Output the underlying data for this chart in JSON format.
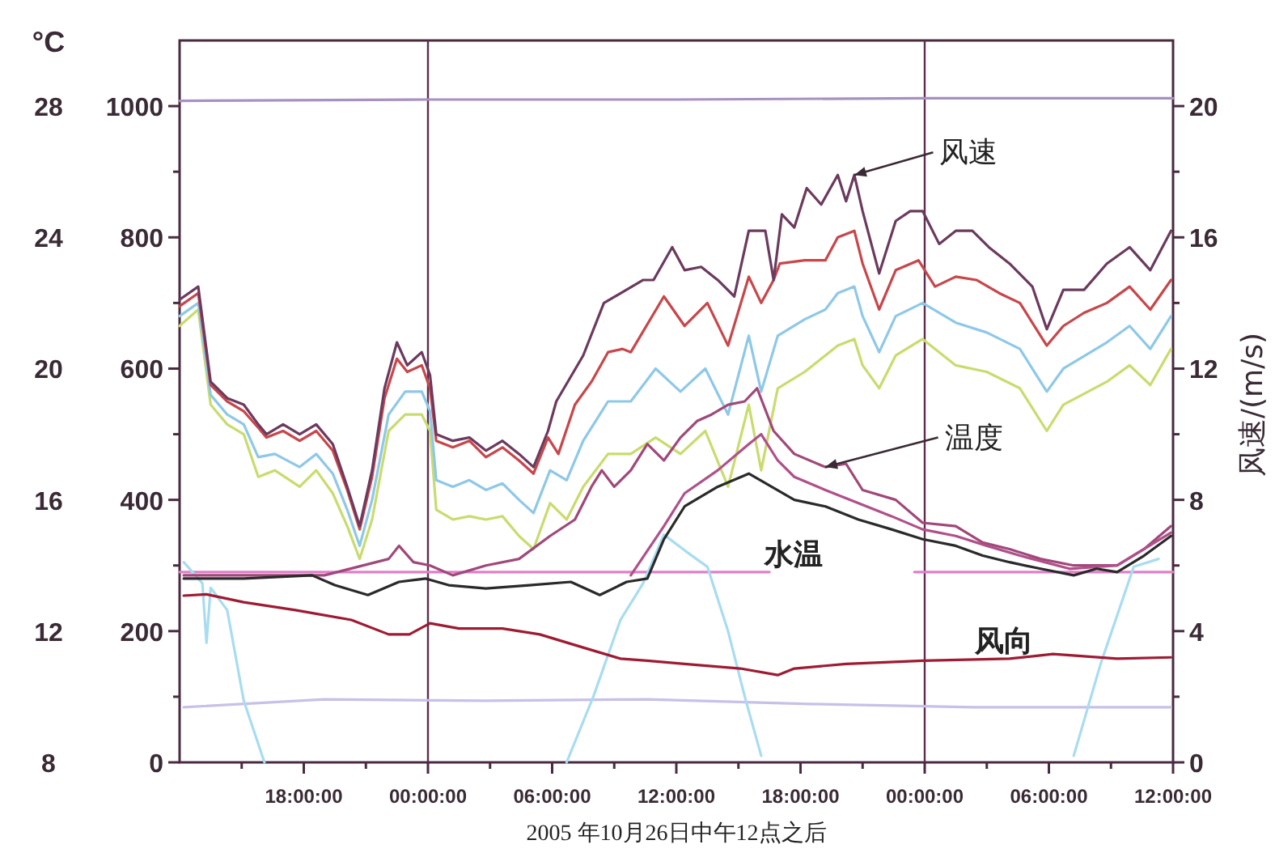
{
  "chart_data": {
    "type": "line",
    "xlabel": "2005 年10月26日中午12点之后",
    "y2label": "风速/(m/s)",
    "y3label": "°C",
    "xlim": [
      "2005-10-26T12:00",
      "2005-10-28T12:00"
    ],
    "xticks": [
      {
        "value": "2005-10-26T15:00",
        "label": null
      },
      {
        "value": "2005-10-26T18:00",
        "label": "18:00:00"
      },
      {
        "value": "2005-10-26T21:00",
        "label": null
      },
      {
        "value": "2005-10-27T00:00",
        "label": "00:00:00"
      },
      {
        "value": "2005-10-27T03:00",
        "label": null
      },
      {
        "value": "2005-10-27T06:00",
        "label": "06:00:00"
      },
      {
        "value": "2005-10-27T09:00",
        "label": null
      },
      {
        "value": "2005-10-27T12:00",
        "label": "12:00:00"
      },
      {
        "value": "2005-10-27T15:00",
        "label": null
      },
      {
        "value": "2005-10-27T18:00",
        "label": "18:00:00"
      },
      {
        "value": "2005-10-27T21:00",
        "label": null
      },
      {
        "value": "2005-10-28T00:00",
        "label": "00:00:00"
      },
      {
        "value": "2005-10-28T03:00",
        "label": null
      },
      {
        "value": "2005-10-28T06:00",
        "label": "06:00:00"
      },
      {
        "value": "2005-10-28T09:00",
        "label": null
      },
      {
        "value": "2005-10-28T12:00",
        "label": "12:00:00"
      }
    ],
    "ylim": [
      0,
      1100
    ],
    "yticks": [
      0,
      {
        "value": 100,
        "label": null
      },
      200,
      {
        "value": 300,
        "label": null
      },
      400,
      {
        "value": 500,
        "label": null
      },
      600,
      {
        "value": 700,
        "label": null
      },
      800,
      {
        "value": 900,
        "label": null
      },
      1000
    ],
    "y2lim": [
      0,
      22
    ],
    "y2ticks": [
      0,
      {
        "value": 2,
        "label": null
      },
      4,
      {
        "value": 6,
        "label": null
      },
      8,
      {
        "value": 10,
        "label": null
      },
      12,
      {
        "value": 14,
        "label": null
      },
      16,
      {
        "value": 18,
        "label": null
      },
      20
    ],
    "y3lim": [
      8,
      30
    ],
    "y3ticks": [
      8,
      12,
      16,
      20,
      24,
      28
    ],
    "ref_lines": [
      {
        "axis": "x",
        "value": "2005-10-27T00:00",
        "color": "#5a3050"
      },
      {
        "axis": "x",
        "value": "2005-10-28T00:00",
        "color": "#5a3050"
      }
    ],
    "series": [
      {
        "color": "#a890c0",
        "x": [
          "2005-10-26T12:00",
          "2005-10-27T00:00",
          "2005-10-27T12:00",
          "2005-10-28T00:00",
          "2005-10-28T12:00"
        ],
        "values": [
          1008,
          1010,
          1010,
          1012,
          1012
        ]
      },
      {
        "color": "#c8c0e8",
        "x": [
          "2005-10-26T12:12",
          "2005-10-26T19:00",
          "2005-10-27T02:48",
          "2005-10-27T10:36",
          "2005-10-27T18:24",
          "2005-10-28T02:18",
          "2005-10-28T11:54"
        ],
        "values": [
          84,
          96,
          94,
          96,
          89,
          84,
          84
        ]
      },
      {
        "color": "#e080c8",
        "x": [
          "2005-10-26T12:00",
          "2005-10-27T00:00",
          "2005-10-27T12:00",
          "2005-10-27T16:30"
        ],
        "values": [
          290,
          290,
          290,
          290
        ]
      },
      {
        "color": "#e080c8",
        "x": [
          "2005-10-27T23:30",
          "2005-10-28T12:00"
        ],
        "values": [
          290,
          290
        ]
      },
      {
        "color": "#a8dcf0",
        "x": [
          "2005-10-26T12:12",
          "2005-10-26T13:06",
          "2005-10-26T13:18",
          "2005-10-26T13:30",
          "2005-10-26T14:18",
          "2005-10-26T15:06",
          "2005-10-26T16:06"
        ],
        "values": [
          305,
          273,
          182,
          266,
          232,
          94,
          0
        ]
      },
      {
        "color": "#a8dcf0",
        "x": [
          "2005-10-27T06:42",
          "2005-10-27T08:00",
          "2005-10-27T09:18",
          "2005-10-27T10:24",
          "2005-10-27T11:24",
          "2005-10-27T12:24",
          "2005-10-27T13:30",
          "2005-10-27T14:30",
          "2005-10-27T15:18",
          "2005-10-27T16:06"
        ],
        "values": [
          0,
          101,
          217,
          273,
          347,
          323,
          298,
          200,
          101,
          10
        ]
      },
      {
        "color": "#a8dcf0",
        "x": [
          "2005-10-28T07:12",
          "2005-10-28T08:30",
          "2005-10-28T10:06",
          "2005-10-28T11:18"
        ],
        "values": [
          10,
          150,
          298,
          310
        ]
      },
      {
        "color": "#c8dc6e",
        "axis": "y3",
        "x": [
          "2005-10-26T12:00",
          "2005-10-26T12:54",
          "2005-10-26T13:30",
          "2005-10-26T14:18",
          "2005-10-26T15:06",
          "2005-10-26T15:48",
          "2005-10-26T16:36",
          "2005-10-26T17:48",
          "2005-10-26T18:36",
          "2005-10-26T19:24",
          "2005-10-26T20:06",
          "2005-10-26T20:42",
          "2005-10-26T21:18",
          "2005-10-26T22:06",
          "2005-10-26T22:54",
          "2005-10-26T23:42",
          "2005-10-27T00:06",
          "2005-10-27T00:24",
          "2005-10-27T01:12",
          "2005-10-27T02:00",
          "2005-10-27T02:48",
          "2005-10-27T03:36",
          "2005-10-27T04:24",
          "2005-10-27T05:06",
          "2005-10-27T05:54",
          "2005-10-27T06:42",
          "2005-10-27T07:30",
          "2005-10-27T08:42",
          "2005-10-27T09:48",
          "2005-10-27T11:00",
          "2005-10-27T12:12",
          "2005-10-27T13:24",
          "2005-10-27T14:30",
          "2005-10-27T15:30",
          "2005-10-27T16:06",
          "2005-10-27T16:54",
          "2005-10-27T18:12",
          "2005-10-27T19:12",
          "2005-10-27T19:48",
          "2005-10-27T20:36",
          "2005-10-27T21:00",
          "2005-10-27T21:48",
          "2005-10-27T22:36",
          "2005-10-27T23:54",
          "2005-10-28T01:30",
          "2005-10-28T03:00",
          "2005-10-28T04:36",
          "2005-10-28T05:54",
          "2005-10-28T06:42",
          "2005-10-28T08:48",
          "2005-10-28T09:54",
          "2005-10-28T10:54",
          "2005-10-28T11:54"
        ],
        "values": [
          21.3,
          21.8,
          18.9,
          18.3,
          18.0,
          16.7,
          16.9,
          16.4,
          16.9,
          16.2,
          15.2,
          14.2,
          15.4,
          18.1,
          18.6,
          18.6,
          18.1,
          15.7,
          15.4,
          15.5,
          15.4,
          15.5,
          14.9,
          14.5,
          15.9,
          15.4,
          16.4,
          17.4,
          17.4,
          17.9,
          17.4,
          18.1,
          16.4,
          18.9,
          16.9,
          19.4,
          19.9,
          20.4,
          20.7,
          20.9,
          20.1,
          19.4,
          20.4,
          20.9,
          20.1,
          19.9,
          19.4,
          18.1,
          18.9,
          19.6,
          20.1,
          19.5,
          20.6
        ]
      },
      {
        "color": "#8ec8e8",
        "axis": "y3",
        "x": [
          "2005-10-26T12:00",
          "2005-10-26T12:54",
          "2005-10-26T13:30",
          "2005-10-26T14:18",
          "2005-10-26T15:06",
          "2005-10-26T15:48",
          "2005-10-26T16:36",
          "2005-10-26T17:48",
          "2005-10-26T18:36",
          "2005-10-26T19:24",
          "2005-10-26T20:06",
          "2005-10-26T20:42",
          "2005-10-26T21:18",
          "2005-10-26T22:06",
          "2005-10-26T22:54",
          "2005-10-26T23:42",
          "2005-10-27T00:06",
          "2005-10-27T00:24",
          "2005-10-27T01:12",
          "2005-10-27T02:00",
          "2005-10-27T02:48",
          "2005-10-27T03:36",
          "2005-10-27T04:24",
          "2005-10-27T05:06",
          "2005-10-27T05:54",
          "2005-10-27T06:42",
          "2005-10-27T07:30",
          "2005-10-27T08:42",
          "2005-10-27T09:48",
          "2005-10-27T11:00",
          "2005-10-27T12:12",
          "2005-10-27T13:24",
          "2005-10-27T14:30",
          "2005-10-27T15:30",
          "2005-10-27T16:06",
          "2005-10-27T16:54",
          "2005-10-27T18:12",
          "2005-10-27T19:12",
          "2005-10-27T19:48",
          "2005-10-27T20:36",
          "2005-10-27T21:00",
          "2005-10-27T21:48",
          "2005-10-27T22:36",
          "2005-10-27T23:54",
          "2005-10-28T01:30",
          "2005-10-28T03:00",
          "2005-10-28T04:36",
          "2005-10-28T05:54",
          "2005-10-28T06:42",
          "2005-10-28T08:48",
          "2005-10-28T09:54",
          "2005-10-28T10:54",
          "2005-10-28T11:54"
        ],
        "values": [
          21.6,
          22.0,
          19.2,
          18.6,
          18.3,
          17.3,
          17.4,
          17.0,
          17.4,
          16.8,
          15.7,
          14.6,
          16.0,
          18.6,
          19.3,
          19.3,
          18.7,
          16.6,
          16.4,
          16.6,
          16.3,
          16.5,
          16.0,
          15.6,
          16.9,
          16.6,
          17.8,
          19.0,
          19.0,
          20.0,
          19.3,
          20.0,
          18.6,
          21.0,
          19.3,
          21.0,
          21.5,
          21.8,
          22.3,
          22.5,
          21.6,
          20.5,
          21.6,
          22.0,
          21.4,
          21.1,
          20.6,
          19.3,
          20.0,
          20.8,
          21.3,
          20.6,
          21.6
        ]
      },
      {
        "color": "#c8464a",
        "axis": "y3",
        "x": [
          "2005-10-26T12:00",
          "2005-10-26T12:54",
          "2005-10-26T13:30",
          "2005-10-26T14:18",
          "2005-10-26T15:06",
          "2005-10-26T15:48",
          "2005-10-26T16:12",
          "2005-10-26T17:00",
          "2005-10-26T17:48",
          "2005-10-26T18:36",
          "2005-10-26T19:24",
          "2005-10-26T20:06",
          "2005-10-26T20:42",
          "2005-10-26T21:18",
          "2005-10-26T21:54",
          "2005-10-26T22:30",
          "2005-10-26T23:00",
          "2005-10-26T23:42",
          "2005-10-27T00:06",
          "2005-10-27T00:24",
          "2005-10-27T01:12",
          "2005-10-27T02:00",
          "2005-10-27T02:48",
          "2005-10-27T03:36",
          "2005-10-27T04:24",
          "2005-10-27T05:06",
          "2005-10-27T05:48",
          "2005-10-27T06:18",
          "2005-10-27T07:06",
          "2005-10-27T07:54",
          "2005-10-27T08:42",
          "2005-10-27T09:24",
          "2005-10-27T09:48",
          "2005-10-27T11:24",
          "2005-10-27T12:24",
          "2005-10-27T13:30",
          "2005-10-27T14:30",
          "2005-10-27T15:30",
          "2005-10-27T16:06",
          "2005-10-27T16:42",
          "2005-10-27T17:00",
          "2005-10-27T18:12",
          "2005-10-27T19:12",
          "2005-10-27T19:48",
          "2005-10-27T20:36",
          "2005-10-27T21:00",
          "2005-10-27T21:48",
          "2005-10-27T22:36",
          "2005-10-27T23:42",
          "2005-10-28T00:30",
          "2005-10-28T01:30",
          "2005-10-28T02:30",
          "2005-10-28T03:36",
          "2005-10-28T04:36",
          "2005-10-28T05:54",
          "2005-10-28T06:42",
          "2005-10-28T07:42",
          "2005-10-28T08:48",
          "2005-10-28T09:54",
          "2005-10-28T10:54",
          "2005-10-28T11:54"
        ],
        "values": [
          21.9,
          22.3,
          19.5,
          19.0,
          18.7,
          18.2,
          17.9,
          18.1,
          17.8,
          18.1,
          17.5,
          16.3,
          15.1,
          16.7,
          19.1,
          20.3,
          19.9,
          20.1,
          19.4,
          17.8,
          17.6,
          17.8,
          17.3,
          17.6,
          17.2,
          16.8,
          17.9,
          17.4,
          18.9,
          19.6,
          20.5,
          20.6,
          20.5,
          22.2,
          21.3,
          22.0,
          20.7,
          22.8,
          22.0,
          22.7,
          23.2,
          23.3,
          23.3,
          24.0,
          24.2,
          23.2,
          21.8,
          23.0,
          23.3,
          22.5,
          22.8,
          22.7,
          22.3,
          22.0,
          20.7,
          21.3,
          21.7,
          22.0,
          22.5,
          21.8,
          22.7
        ]
      },
      {
        "color": "#6b3a5e",
        "axis": "y2",
        "x": [
          "2005-10-26T12:00",
          "2005-10-26T12:54",
          "2005-10-26T13:30",
          "2005-10-26T14:18",
          "2005-10-26T15:06",
          "2005-10-26T15:48",
          "2005-10-26T16:12",
          "2005-10-26T17:00",
          "2005-10-26T17:48",
          "2005-10-26T18:36",
          "2005-10-26T19:24",
          "2005-10-26T20:06",
          "2005-10-26T20:42",
          "2005-10-26T21:18",
          "2005-10-26T21:54",
          "2005-10-26T22:30",
          "2005-10-26T23:00",
          "2005-10-26T23:42",
          "2005-10-27T00:06",
          "2005-10-27T00:24",
          "2005-10-27T01:12",
          "2005-10-27T02:00",
          "2005-10-27T02:48",
          "2005-10-27T03:36",
          "2005-10-27T04:24",
          "2005-10-27T05:06",
          "2005-10-27T05:48",
          "2005-10-27T06:12",
          "2005-10-27T07:30",
          "2005-10-27T08:30",
          "2005-10-27T10:24",
          "2005-10-27T10:54",
          "2005-10-27T11:48",
          "2005-10-27T12:24",
          "2005-10-27T13:12",
          "2005-10-27T14:00",
          "2005-10-27T14:48",
          "2005-10-27T15:30",
          "2005-10-27T16:18",
          "2005-10-27T16:42",
          "2005-10-27T17:06",
          "2005-10-27T17:42",
          "2005-10-27T18:18",
          "2005-10-27T19:00",
          "2005-10-27T19:48",
          "2005-10-27T20:12",
          "2005-10-27T20:36",
          "2005-10-27T21:00",
          "2005-10-27T21:48",
          "2005-10-27T22:36",
          "2005-10-27T23:18",
          "2005-10-27T23:54",
          "2005-10-28T00:42",
          "2005-10-28T01:30",
          "2005-10-28T02:18",
          "2005-10-28T03:06",
          "2005-10-28T04:06",
          "2005-10-28T05:12",
          "2005-10-28T05:54",
          "2005-10-28T06:42",
          "2005-10-28T07:42",
          "2005-10-28T08:48",
          "2005-10-28T09:54",
          "2005-10-28T10:54",
          "2005-10-28T11:54"
        ],
        "values": [
          14.1,
          14.5,
          11.6,
          11.1,
          10.9,
          10.3,
          10.0,
          10.3,
          10.0,
          10.3,
          9.7,
          8.4,
          7.2,
          8.9,
          11.4,
          12.8,
          12.1,
          12.5,
          11.8,
          10.0,
          9.8,
          9.9,
          9.5,
          9.8,
          9.4,
          9.0,
          10.1,
          11.0,
          12.4,
          14.0,
          14.7,
          14.7,
          15.7,
          15.0,
          15.1,
          14.7,
          14.2,
          16.2,
          16.2,
          14.7,
          16.7,
          16.3,
          17.5,
          17.0,
          17.9,
          17.1,
          17.9,
          16.8,
          14.9,
          16.5,
          16.8,
          16.8,
          15.8,
          16.2,
          16.2,
          15.7,
          15.2,
          14.5,
          13.2,
          14.4,
          14.4,
          15.2,
          15.7,
          15.0,
          16.2
        ]
      },
      {
        "color": "#a0487a",
        "axis": "y3",
        "x": [
          "2005-10-26T12:12",
          "2005-10-26T19:00",
          "2005-10-26T22:06",
          "2005-10-26T22:36",
          "2005-10-26T23:18",
          "2005-10-27T00:06",
          "2005-10-27T01:12",
          "2005-10-27T02:48",
          "2005-10-27T04:24",
          "2005-10-27T05:54",
          "2005-10-27T07:06",
          "2005-10-27T07:54",
          "2005-10-27T08:24",
          "2005-10-27T09:00",
          "2005-10-27T09:48",
          "2005-10-27T10:36",
          "2005-10-27T11:24",
          "2005-10-27T12:12",
          "2005-10-27T13:00",
          "2005-10-27T13:42",
          "2005-10-27T14:30",
          "2005-10-27T15:18",
          "2005-10-27T15:54",
          "2005-10-27T16:42",
          "2005-10-27T17:42",
          "2005-10-27T19:12",
          "2005-10-27T20:12",
          "2005-10-27T21:00",
          "2005-10-27T22:36",
          "2005-10-27T23:54",
          "2005-10-28T01:30",
          "2005-10-28T02:48",
          "2005-10-28T04:06",
          "2005-10-28T05:36",
          "2005-10-28T07:12",
          "2005-10-28T09:18",
          "2005-10-28T10:36",
          "2005-10-28T11:54"
        ],
        "values": [
          13.7,
          13.7,
          14.2,
          14.6,
          14.1,
          14.0,
          13.7,
          14.0,
          14.2,
          14.9,
          15.4,
          16.4,
          16.9,
          16.4,
          16.9,
          17.7,
          17.2,
          17.9,
          18.4,
          18.6,
          18.9,
          19.0,
          19.4,
          18.1,
          17.4,
          17.0,
          17.1,
          16.3,
          16.0,
          15.3,
          15.2,
          14.7,
          14.5,
          14.2,
          14.0,
          14.0,
          14.5,
          15.2
        ]
      },
      {
        "color": "#b0508a",
        "axis": "y3",
        "x": [
          "2005-10-27T09:48",
          "2005-10-27T11:24",
          "2005-10-27T12:24",
          "2005-10-27T14:00",
          "2005-10-27T15:30",
          "2005-10-27T16:06",
          "2005-10-27T16:54",
          "2005-10-27T17:42",
          "2005-10-27T19:12",
          "2005-10-27T20:48",
          "2005-10-27T22:24",
          "2005-10-27T23:54",
          "2005-10-28T01:30",
          "2005-10-28T03:00",
          "2005-10-28T04:36",
          "2005-10-28T07:00",
          "2005-10-28T09:18",
          "2005-10-28T11:54"
        ],
        "values": [
          13.7,
          15.2,
          16.2,
          16.9,
          17.7,
          18.0,
          17.2,
          16.7,
          16.3,
          15.9,
          15.5,
          15.1,
          14.9,
          14.6,
          14.3,
          13.9,
          14.0,
          15.0
        ]
      },
      {
        "color": "#2a2a2a",
        "axis": "y3",
        "x": [
          "2005-10-26T12:12",
          "2005-10-26T15:06",
          "2005-10-26T18:24",
          "2005-10-26T19:30",
          "2005-10-26T21:06",
          "2005-10-26T22:36",
          "2005-10-26T23:54",
          "2005-10-27T01:00",
          "2005-10-27T02:48",
          "2005-10-27T04:54",
          "2005-10-27T06:54",
          "2005-10-27T08:18",
          "2005-10-27T09:36",
          "2005-10-27T10:36",
          "2005-10-27T11:24",
          "2005-10-27T12:24",
          "2005-10-27T14:00",
          "2005-10-27T15:30",
          "2005-10-27T16:36",
          "2005-10-27T17:42",
          "2005-10-27T19:12",
          "2005-10-27T20:48",
          "2005-10-27T22:24",
          "2005-10-27T23:54",
          "2005-10-28T01:30",
          "2005-10-28T02:48",
          "2005-10-28T04:06",
          "2005-10-28T05:36",
          "2005-10-28T07:12",
          "2005-10-28T08:18",
          "2005-10-28T09:18",
          "2005-10-28T10:36",
          "2005-10-28T11:54"
        ],
        "values": [
          13.6,
          13.6,
          13.7,
          13.4,
          13.1,
          13.5,
          13.6,
          13.4,
          13.3,
          13.4,
          13.5,
          13.1,
          13.5,
          13.6,
          14.8,
          15.8,
          16.4,
          16.8,
          16.4,
          16.0,
          15.8,
          15.4,
          15.1,
          14.8,
          14.6,
          14.3,
          14.1,
          13.9,
          13.7,
          13.9,
          13.8,
          14.3,
          14.9
        ]
      },
      {
        "color": "#9e1b32",
        "x": [
          "2005-10-26T12:12",
          "2005-10-26T13:18",
          "2005-10-26T15:06",
          "2005-10-26T17:36",
          "2005-10-26T20:18",
          "2005-10-26T22:06",
          "2005-10-26T23:06",
          "2005-10-27T00:06",
          "2005-10-27T01:30",
          "2005-10-27T03:36",
          "2005-10-27T05:24",
          "2005-10-27T07:30",
          "2005-10-27T09:18",
          "2005-10-27T10:36",
          "2005-10-27T12:24",
          "2005-10-27T15:06",
          "2005-10-27T16:54",
          "2005-10-27T17:42",
          "2005-10-27T20:12",
          "2005-10-27T23:54",
          "2005-10-28T04:06",
          "2005-10-28T06:12",
          "2005-10-28T09:18",
          "2005-10-28T11:54"
        ],
        "values": [
          254,
          256,
          244,
          232,
          217,
          195,
          195,
          212,
          204,
          204,
          195,
          175,
          158,
          155,
          150,
          143,
          133,
          143,
          150,
          155,
          158,
          165,
          158,
          160
        ]
      }
    ],
    "annotations": [
      {
        "text": "风速",
        "x": "2005-10-27T20:36",
        "y": 895
      },
      {
        "text": "温度",
        "x": "2005-10-27T19:12",
        "y": 450
      },
      "水温",
      "风向"
    ]
  }
}
